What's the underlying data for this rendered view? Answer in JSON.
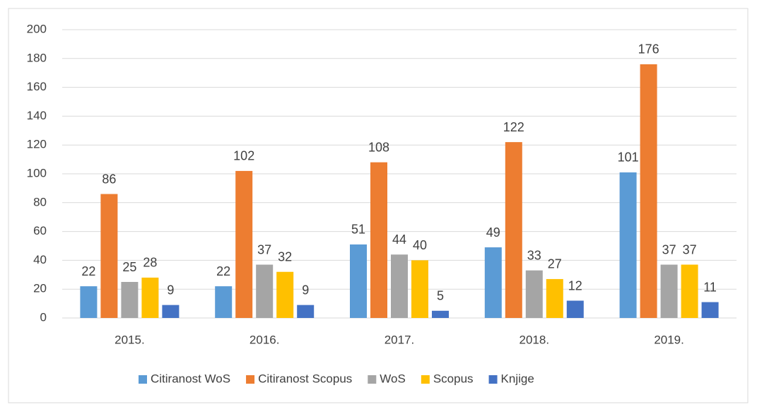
{
  "chart_data": {
    "type": "bar",
    "categories": [
      "2015.",
      "2016.",
      "2017.",
      "2018.",
      "2019."
    ],
    "series": [
      {
        "name": "Citiranost WoS",
        "color": "#5b9bd5",
        "values": [
          22,
          22,
          51,
          49,
          101
        ]
      },
      {
        "name": "Citiranost Scopus",
        "color": "#ed7d31",
        "values": [
          86,
          102,
          108,
          122,
          176
        ]
      },
      {
        "name": "WoS",
        "color": "#a5a5a5",
        "values": [
          25,
          37,
          44,
          33,
          37
        ]
      },
      {
        "name": "Scopus",
        "color": "#ffc000",
        "values": [
          28,
          32,
          40,
          27,
          37
        ]
      },
      {
        "name": "Knjige",
        "color": "#4472c4",
        "values": [
          9,
          9,
          5,
          12,
          11
        ]
      }
    ],
    "ylim": [
      0,
      200
    ],
    "yticks": [
      0,
      20,
      40,
      60,
      80,
      100,
      120,
      140,
      160,
      180,
      200
    ],
    "grid": true,
    "legend": "bottom"
  }
}
